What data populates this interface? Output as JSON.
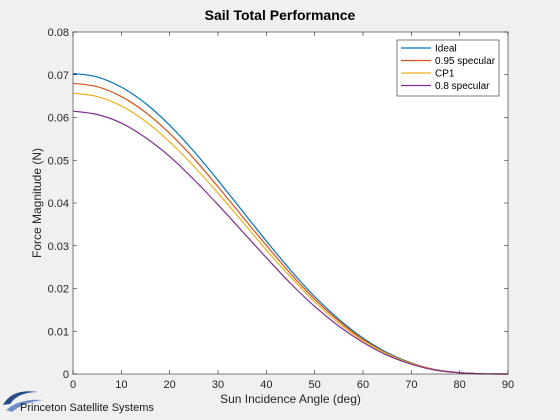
{
  "chart_data": {
    "type": "line",
    "title": "Sail Total Performance",
    "xlabel": "Sun Incidence Angle (deg)",
    "ylabel": "Force Magnitude (N)",
    "xlim": [
      0,
      90
    ],
    "ylim": [
      0,
      0.08
    ],
    "x_ticks": [
      "0",
      "10",
      "20",
      "30",
      "40",
      "50",
      "60",
      "70",
      "80",
      "90"
    ],
    "y_ticks": [
      "0",
      "0.01",
      "0.02",
      "0.03",
      "0.04",
      "0.05",
      "0.06",
      "0.07",
      "0.08"
    ],
    "grid": false,
    "legend_position": "top-right",
    "x": [
      0,
      5,
      10,
      15,
      20,
      25,
      30,
      35,
      40,
      45,
      50,
      55,
      60,
      65,
      70,
      75,
      80,
      85,
      90
    ],
    "series": [
      {
        "name": "Ideal",
        "color": "#0072BD",
        "values": [
          0.0703,
          0.0695,
          0.0671,
          0.0633,
          0.0582,
          0.0521,
          0.0453,
          0.0382,
          0.0311,
          0.0243,
          0.0181,
          0.0128,
          0.0084,
          0.005,
          0.0026,
          0.001,
          0.0003,
          4e-05,
          0.0
        ]
      },
      {
        "name": "0.95 specular",
        "color": "#D95319",
        "values": [
          0.068,
          0.0672,
          0.0649,
          0.0612,
          0.0563,
          0.0504,
          0.0438,
          0.0369,
          0.0301,
          0.0235,
          0.0175,
          0.0124,
          0.0081,
          0.0048,
          0.0025,
          0.001,
          0.0003,
          4e-05,
          0.0
        ]
      },
      {
        "name": "CP1",
        "color": "#EDB120",
        "values": [
          0.0657,
          0.0649,
          0.0627,
          0.0591,
          0.0543,
          0.0486,
          0.0423,
          0.0357,
          0.029,
          0.0227,
          0.0169,
          0.0119,
          0.0078,
          0.0047,
          0.0024,
          0.0009,
          0.0003,
          4e-05,
          0.0
        ]
      },
      {
        "name": "0.8 specular",
        "color": "#7E2F8E",
        "values": [
          0.0615,
          0.0607,
          0.0587,
          0.0553,
          0.0509,
          0.0455,
          0.0396,
          0.0334,
          0.0272,
          0.0212,
          0.0158,
          0.0112,
          0.0074,
          0.0044,
          0.0023,
          0.0009,
          0.0003,
          4e-05,
          0.0
        ]
      }
    ]
  },
  "logo": {
    "text": "Princeton Satellite Systems"
  }
}
